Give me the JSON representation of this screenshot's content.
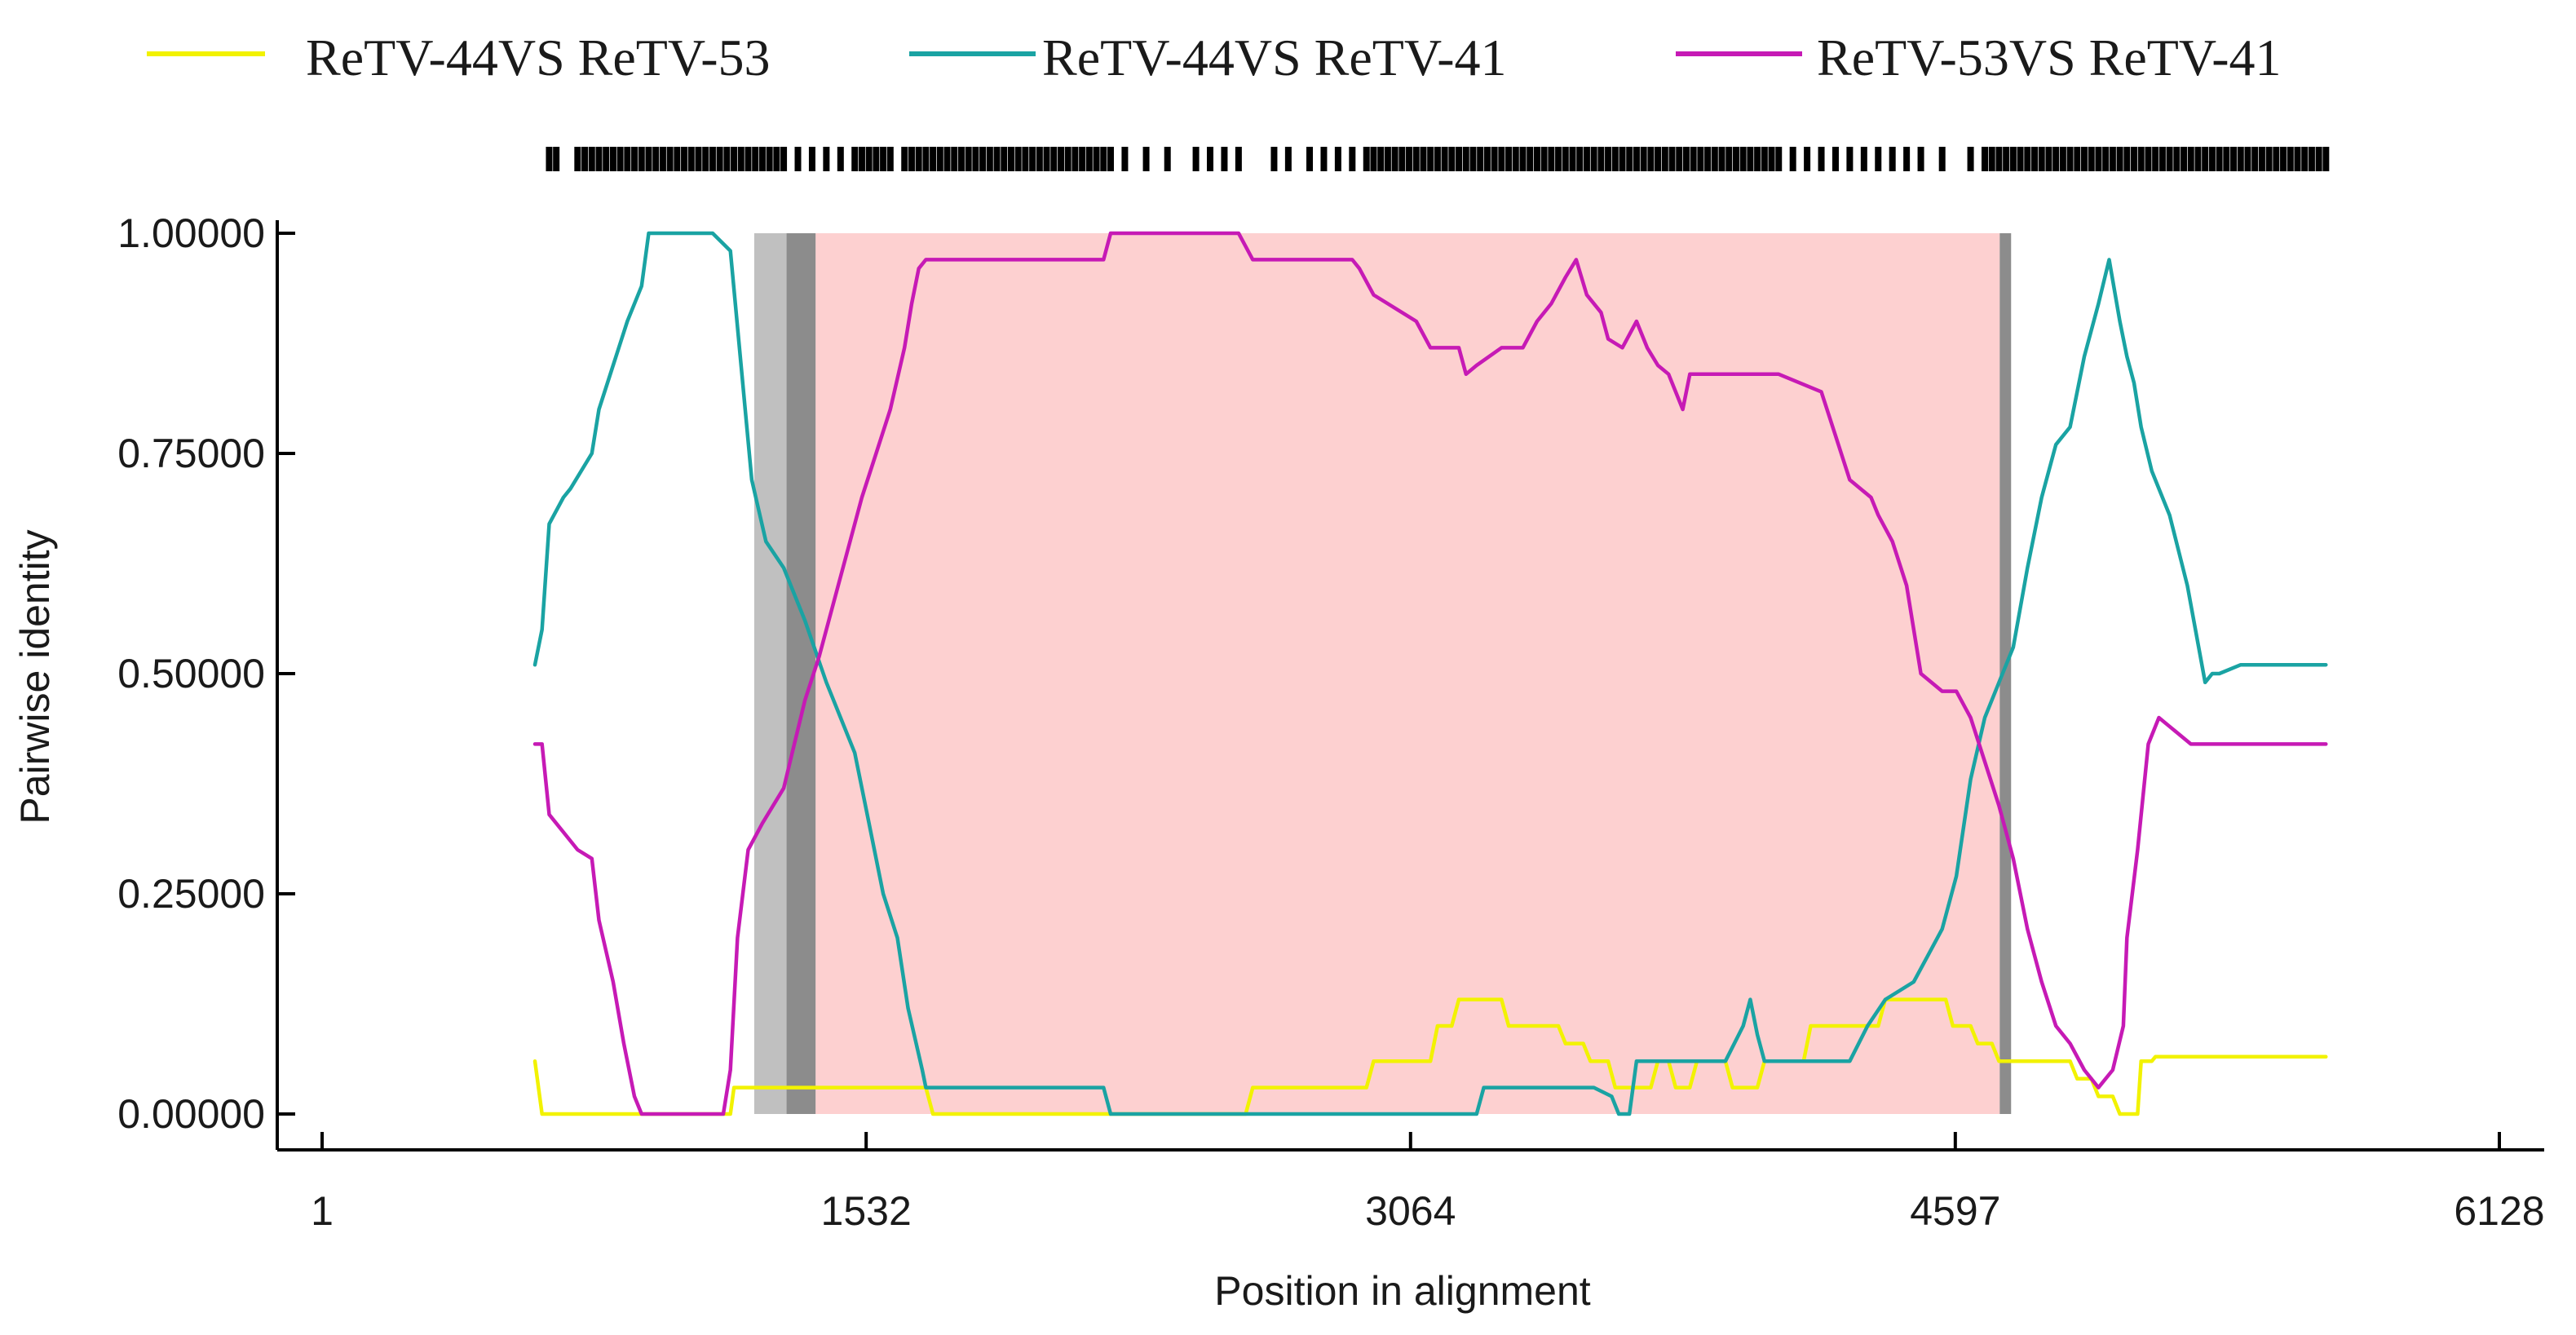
{
  "chart_data": {
    "type": "line",
    "title": "",
    "xlabel": "Position in alignment",
    "ylabel": "Pairwise identity",
    "xlim": [
      1,
      6128
    ],
    "ylim": [
      0,
      1
    ],
    "x_ticks": [
      {
        "value": 1,
        "label": "1"
      },
      {
        "value": 1532,
        "label": "1532"
      },
      {
        "value": 3064,
        "label": "3064"
      },
      {
        "value": 4597,
        "label": "4597"
      },
      {
        "value": 6128,
        "label": "6128"
      }
    ],
    "y_ticks": [
      {
        "value": 0,
        "label": "0.00000"
      },
      {
        "value": 0.25,
        "label": "0.25000"
      },
      {
        "value": 0.5,
        "label": "0.50000"
      },
      {
        "value": 0.75,
        "label": "0.75000"
      },
      {
        "value": 1,
        "label": "1.00000"
      }
    ],
    "legend": "top",
    "shaded_regions": [
      {
        "x_start": 1217,
        "x_end": 1308,
        "color": "#c0c0c0"
      },
      {
        "x_start": 1308,
        "x_end": 1390,
        "color": "#8c8c8c"
      },
      {
        "x_start": 1390,
        "x_end": 4722,
        "color": "#fdd0d0"
      },
      {
        "x_start": 4722,
        "x_end": 4754,
        "color": "#8c8c8c"
      }
    ],
    "series": [
      {
        "name": "ReTV-44VS ReTV-53",
        "color": "#f2f200",
        "x": [
          600,
          620,
          1150,
          1160,
          1190,
          1200,
          1700,
          1720,
          2600,
          2620,
          2940,
          2960,
          3120,
          3140,
          3180,
          3200,
          3320,
          3340,
          3480,
          3500,
          3550,
          3570,
          3620,
          3640,
          3740,
          3760,
          3790,
          3810,
          3850,
          3870,
          3950,
          3970,
          4040,
          4060,
          4170,
          4190,
          4380,
          4400,
          4570,
          4590,
          4640,
          4660,
          4700,
          4720,
          4920,
          4940,
          4980,
          5000,
          5040,
          5060,
          5070,
          5110,
          5120,
          5140,
          5150,
          5160,
          5640
        ],
        "values": [
          0.06,
          0.0,
          0.0,
          0.03,
          0.03,
          0.03,
          0.03,
          0.0,
          0.0,
          0.03,
          0.03,
          0.06,
          0.06,
          0.1,
          0.1,
          0.13,
          0.13,
          0.1,
          0.1,
          0.08,
          0.08,
          0.06,
          0.06,
          0.03,
          0.03,
          0.06,
          0.06,
          0.03,
          0.03,
          0.06,
          0.06,
          0.03,
          0.03,
          0.06,
          0.06,
          0.1,
          0.1,
          0.13,
          0.13,
          0.1,
          0.1,
          0.08,
          0.08,
          0.06,
          0.06,
          0.04,
          0.04,
          0.02,
          0.02,
          0.0,
          0.0,
          0.0,
          0.06,
          0.06,
          0.06,
          0.065,
          0.065
        ]
      },
      {
        "name": "ReTV-44VS ReTV-41",
        "color": "#1aa3a3",
        "x": [
          600,
          620,
          640,
          680,
          700,
          760,
          780,
          820,
          860,
          900,
          920,
          980,
          1100,
          1150,
          1180,
          1210,
          1250,
          1300,
          1360,
          1420,
          1460,
          1500,
          1540,
          1580,
          1620,
          1650,
          1690,
          1700,
          2200,
          2220,
          2600,
          3250,
          3270,
          3580,
          3630,
          3650,
          3680,
          3700,
          3740,
          3790,
          3950,
          4000,
          4020,
          4040,
          4060,
          4100,
          4150,
          4200,
          4250,
          4300,
          4350,
          4400,
          4480,
          4520,
          4560,
          4600,
          4640,
          4680,
          4720,
          4760,
          4800,
          4840,
          4880,
          4920,
          4960,
          5000,
          5030,
          5060,
          5080,
          5100,
          5120,
          5150,
          5200,
          5250,
          5300,
          5320,
          5340,
          5400,
          5450,
          5640
        ],
        "values": [
          0.51,
          0.55,
          0.67,
          0.7,
          0.71,
          0.75,
          0.8,
          0.85,
          0.9,
          0.94,
          1.0,
          1.0,
          1.0,
          0.98,
          0.85,
          0.72,
          0.65,
          0.62,
          0.56,
          0.49,
          0.45,
          0.41,
          0.33,
          0.25,
          0.2,
          0.12,
          0.05,
          0.03,
          0.03,
          0.0,
          0.0,
          0.0,
          0.03,
          0.03,
          0.02,
          0.0,
          0.0,
          0.06,
          0.06,
          0.06,
          0.06,
          0.1,
          0.13,
          0.09,
          0.06,
          0.06,
          0.06,
          0.06,
          0.06,
          0.06,
          0.1,
          0.13,
          0.15,
          0.18,
          0.21,
          0.27,
          0.38,
          0.45,
          0.49,
          0.53,
          0.62,
          0.7,
          0.76,
          0.78,
          0.86,
          0.92,
          0.97,
          0.9,
          0.86,
          0.83,
          0.78,
          0.73,
          0.68,
          0.6,
          0.49,
          0.5,
          0.5,
          0.51,
          0.51,
          0.51
        ]
      },
      {
        "name": "ReTV-53VS ReTV-41",
        "color": "#c61ab5",
        "x": [
          600,
          620,
          640,
          680,
          720,
          760,
          780,
          820,
          850,
          880,
          900,
          1130,
          1150,
          1170,
          1200,
          1240,
          1300,
          1330,
          1360,
          1400,
          1440,
          1480,
          1520,
          1560,
          1600,
          1640,
          1660,
          1680,
          1700,
          2200,
          2220,
          2580,
          2620,
          2900,
          2920,
          2960,
          3000,
          3080,
          3120,
          3200,
          3220,
          3250,
          3320,
          3380,
          3420,
          3460,
          3500,
          3530,
          3560,
          3600,
          3620,
          3660,
          3700,
          3730,
          3760,
          3790,
          3830,
          3850,
          3880,
          3920,
          3960,
          4000,
          4040,
          4100,
          4220,
          4260,
          4300,
          4360,
          4380,
          4420,
          4460,
          4500,
          4560,
          4600,
          4640,
          4680,
          4720,
          4760,
          4800,
          4840,
          4880,
          4920,
          4960,
          5000,
          5040,
          5070,
          5080,
          5110,
          5140,
          5170,
          5200,
          5230,
          5260,
          5290,
          5320,
          5340,
          5360,
          5400,
          5640
        ],
        "values": [
          0.42,
          0.42,
          0.34,
          0.32,
          0.3,
          0.29,
          0.22,
          0.15,
          0.08,
          0.02,
          0.0,
          0.0,
          0.05,
          0.2,
          0.3,
          0.33,
          0.37,
          0.42,
          0.47,
          0.52,
          0.58,
          0.64,
          0.7,
          0.75,
          0.8,
          0.87,
          0.92,
          0.96,
          0.97,
          0.97,
          1.0,
          1.0,
          0.97,
          0.97,
          0.96,
          0.93,
          0.92,
          0.9,
          0.87,
          0.87,
          0.84,
          0.85,
          0.87,
          0.87,
          0.9,
          0.92,
          0.95,
          0.97,
          0.93,
          0.91,
          0.88,
          0.87,
          0.9,
          0.87,
          0.85,
          0.84,
          0.8,
          0.84,
          0.84,
          0.84,
          0.84,
          0.84,
          0.84,
          0.84,
          0.82,
          0.77,
          0.72,
          0.7,
          0.68,
          0.65,
          0.6,
          0.5,
          0.48,
          0.48,
          0.45,
          0.4,
          0.35,
          0.29,
          0.21,
          0.15,
          0.1,
          0.08,
          0.05,
          0.03,
          0.05,
          0.1,
          0.2,
          0.3,
          0.42,
          0.45,
          0.44,
          0.43,
          0.42,
          0.42,
          0.42,
          0.42,
          0.42,
          0.42,
          0.42
        ]
      }
    ],
    "variable_sites": [
      640,
      660,
      720,
      740,
      760,
      780,
      800,
      820,
      840,
      860,
      880,
      900,
      920,
      940,
      960,
      980,
      1000,
      1020,
      1040,
      1060,
      1080,
      1100,
      1120,
      1140,
      1160,
      1180,
      1200,
      1220,
      1240,
      1260,
      1280,
      1300,
      1340,
      1380,
      1420,
      1460,
      1500,
      1520,
      1540,
      1560,
      1580,
      1600,
      1640,
      1660,
      1680,
      1700,
      1720,
      1740,
      1760,
      1780,
      1800,
      1820,
      1840,
      1860,
      1880,
      1900,
      1920,
      1940,
      1960,
      1980,
      2000,
      2020,
      2040,
      2060,
      2080,
      2100,
      2120,
      2140,
      2160,
      2180,
      2200,
      2220,
      2260,
      2320,
      2380,
      2460,
      2500,
      2540,
      2580,
      2680,
      2720,
      2780,
      2820,
      2860,
      2900,
      2940,
      2960,
      2980,
      3000,
      3020,
      3040,
      3060,
      3080,
      3100,
      3120,
      3140,
      3160,
      3180,
      3200,
      3220,
      3240,
      3260,
      3280,
      3300,
      3320,
      3340,
      3360,
      3380,
      3400,
      3420,
      3440,
      3460,
      3480,
      3500,
      3520,
      3540,
      3560,
      3580,
      3600,
      3620,
      3640,
      3660,
      3680,
      3700,
      3720,
      3740,
      3760,
      3780,
      3800,
      3820,
      3840,
      3860,
      3880,
      3900,
      3920,
      3940,
      3960,
      3980,
      4000,
      4020,
      4040,
      4060,
      4080,
      4100,
      4140,
      4180,
      4220,
      4260,
      4300,
      4340,
      4380,
      4420,
      4460,
      4500,
      4560,
      4640,
      4680,
      4700,
      4720,
      4740,
      4760,
      4780,
      4800,
      4820,
      4840,
      4860,
      4880,
      4900,
      4920,
      4940,
      4960,
      4980,
      5000,
      5020,
      5040,
      5060,
      5080,
      5100,
      5120,
      5140,
      5160,
      5180,
      5200,
      5220,
      5240,
      5260,
      5280,
      5300,
      5320,
      5340,
      5360,
      5380,
      5400,
      5420,
      5440,
      5460,
      5480,
      5500,
      5520,
      5540,
      5560,
      5580,
      5600,
      5620,
      5640
    ]
  }
}
